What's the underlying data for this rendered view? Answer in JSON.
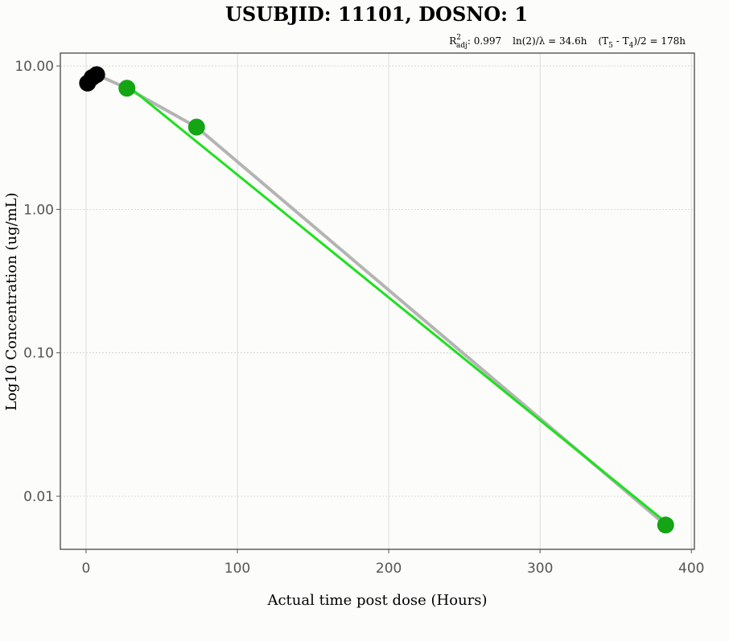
{
  "chart_data": {
    "type": "scatter",
    "title": "USUBJID: 11101, DOSNO: 1",
    "stats": {
      "r2_label": "R",
      "r2_sup": "2",
      "r2_sub": "adj",
      "r2_value": ": 0.997",
      "halflife": "ln(2)/λ = 34.6h",
      "span_open": "(T",
      "span_sub1": "5",
      "span_mid": " - T",
      "span_sub2": "4",
      "span_close": ")/2 = 178h"
    },
    "xlabel": "Actual time post dose (Hours)",
    "ylabel": "Log10 Concentration (ug/mL)",
    "xlim": [
      -17,
      402
    ],
    "ylim_log10": [
      -2.37,
      1.09
    ],
    "y_scale": "log10",
    "grid": true,
    "x_ticks": [
      {
        "value": 0,
        "label": "0"
      },
      {
        "value": 100,
        "label": "100"
      },
      {
        "value": 200,
        "label": "200"
      },
      {
        "value": 300,
        "label": "300"
      },
      {
        "value": 400,
        "label": "400"
      }
    ],
    "y_ticks": [
      {
        "value": 10,
        "label": "10.00"
      },
      {
        "value": 1,
        "label": "1.00"
      },
      {
        "value": 0.1,
        "label": "0.10"
      },
      {
        "value": 0.01,
        "label": "0.01"
      }
    ],
    "series": [
      {
        "role": "observed-line",
        "color": "#b4b4b4",
        "x": [
          1,
          4,
          7,
          27,
          73,
          383
        ],
        "y": [
          7.6,
          8.3,
          8.7,
          7.0,
          3.75,
          0.0063
        ]
      },
      {
        "role": "excluded-points",
        "color": "#000000",
        "x": [
          1,
          4,
          7
        ],
        "y": [
          7.6,
          8.3,
          8.7
        ]
      },
      {
        "role": "lambda-z-points",
        "color": "#14a514",
        "x": [
          27,
          73,
          383
        ],
        "y": [
          7.0,
          3.75,
          0.0063
        ]
      },
      {
        "role": "regression-line",
        "color": "#1ee01e",
        "x": [
          27,
          383
        ],
        "y": [
          7.35,
          0.0066
        ]
      }
    ]
  }
}
